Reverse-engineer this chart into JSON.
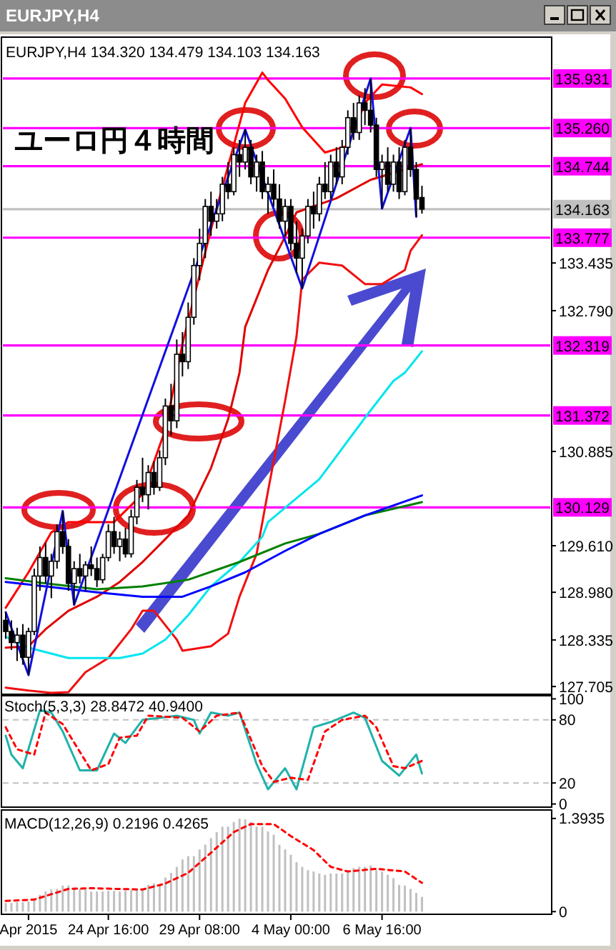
{
  "chart_data": [
    {
      "type": "candlestick",
      "title": "EURJPY,H4",
      "subtitle": "EURJPY,H4 134.320 134.479 134.103 134.163",
      "annotations": [
        "ユーロ円４時間"
      ],
      "categories": [
        null,
        null,
        null,
        null,
        null,
        null,
        null,
        null,
        null,
        null,
        null,
        null,
        null,
        null,
        null,
        null,
        null,
        null,
        null,
        null,
        null,
        null,
        null,
        null,
        null,
        null,
        null,
        null,
        null,
        null,
        null,
        null,
        null,
        null,
        null,
        null,
        null,
        null,
        null,
        null,
        null,
        null,
        null,
        null,
        null,
        null,
        null,
        null,
        null,
        null,
        null,
        null,
        null,
        null,
        null,
        null,
        null,
        null,
        null,
        null,
        null,
        null,
        null,
        null,
        null,
        null,
        null,
        null,
        null,
        null,
        null,
        null,
        null,
        null,
        null,
        null,
        null,
        null,
        null,
        null,
        null,
        null,
        null,
        null,
        null,
        null,
        null,
        null,
        null,
        null,
        null,
        null,
        null,
        null,
        null,
        null
      ],
      "ohlc": [
        [
          128.6,
          128.71,
          128.35,
          128.45
        ],
        [
          128.45,
          128.6,
          128.2,
          128.3
        ],
        [
          128.3,
          128.5,
          128.05,
          128.4
        ],
        [
          128.4,
          128.55,
          128.0,
          128.1
        ],
        [
          128.1,
          128.5,
          127.86,
          128.45
        ],
        [
          128.45,
          129.3,
          128.4,
          129.2
        ],
        [
          129.2,
          129.6,
          129.0,
          129.45
        ],
        [
          129.45,
          129.65,
          129.1,
          129.2
        ],
        [
          129.2,
          129.5,
          128.9,
          129.4
        ],
        [
          129.4,
          129.9,
          129.3,
          129.8
        ],
        [
          129.8,
          130.08,
          129.5,
          129.6
        ],
        [
          129.6,
          129.7,
          129.0,
          129.1
        ],
        [
          129.1,
          129.4,
          128.81,
          129.3
        ],
        [
          129.3,
          129.5,
          129.1,
          129.2
        ],
        [
          129.2,
          129.4,
          129.0,
          129.35
        ],
        [
          129.35,
          129.6,
          129.2,
          129.3
        ],
        [
          129.3,
          129.45,
          129.05,
          129.15
        ],
        [
          129.15,
          129.5,
          129.1,
          129.45
        ],
        [
          129.45,
          129.9,
          129.4,
          129.8
        ],
        [
          129.8,
          130.0,
          129.5,
          129.6
        ],
        [
          129.6,
          129.8,
          129.4,
          129.7
        ],
        [
          129.7,
          129.85,
          129.45,
          129.5
        ],
        [
          129.5,
          130.1,
          129.45,
          130.0
        ],
        [
          130.0,
          130.5,
          129.9,
          130.4
        ],
        [
          130.4,
          130.8,
          130.2,
          130.3
        ],
        [
          130.3,
          130.7,
          130.1,
          130.6
        ],
        [
          130.6,
          130.75,
          130.3,
          130.4
        ],
        [
          130.4,
          130.9,
          130.35,
          130.8
        ],
        [
          130.8,
          131.6,
          130.7,
          131.5
        ],
        [
          131.5,
          131.8,
          131.1,
          131.3
        ],
        [
          131.3,
          132.4,
          131.2,
          132.2
        ],
        [
          132.2,
          132.5,
          131.9,
          132.1
        ],
        [
          132.1,
          132.9,
          132.0,
          132.7
        ],
        [
          132.7,
          133.5,
          132.6,
          133.4
        ],
        [
          133.4,
          133.9,
          133.2,
          133.7
        ],
        [
          133.7,
          134.3,
          133.5,
          134.2
        ],
        [
          134.2,
          134.4,
          133.8,
          134.0
        ],
        [
          134.0,
          134.3,
          133.9,
          134.1
        ],
        [
          134.1,
          134.6,
          134.0,
          134.5
        ],
        [
          134.5,
          134.8,
          134.3,
          134.4
        ],
        [
          134.4,
          135.0,
          134.35,
          134.9
        ],
        [
          134.9,
          135.1,
          134.6,
          134.8
        ],
        [
          134.8,
          135.24,
          134.7,
          135.0
        ],
        [
          135.0,
          135.1,
          134.5,
          134.6
        ],
        [
          134.6,
          134.9,
          134.4,
          134.8
        ],
        [
          134.8,
          134.95,
          134.3,
          134.4
        ],
        [
          134.4,
          134.6,
          134.1,
          134.5
        ],
        [
          134.5,
          134.7,
          134.2,
          134.3
        ],
        [
          134.3,
          134.5,
          133.9,
          134.0
        ],
        [
          134.0,
          134.3,
          133.8,
          134.2
        ],
        [
          134.2,
          134.3,
          133.6,
          133.7
        ],
        [
          133.7,
          134.0,
          133.3,
          133.5
        ],
        [
          133.5,
          133.9,
          133.09,
          133.8
        ],
        [
          133.8,
          134.3,
          133.7,
          134.2
        ],
        [
          134.2,
          134.4,
          133.9,
          134.1
        ],
        [
          134.1,
          134.6,
          134.0,
          134.5
        ],
        [
          134.5,
          134.8,
          134.3,
          134.4
        ],
        [
          134.4,
          134.9,
          134.3,
          134.8
        ],
        [
          134.8,
          135.0,
          134.5,
          134.6
        ],
        [
          134.6,
          135.1,
          134.5,
          135.0
        ],
        [
          135.0,
          135.5,
          134.9,
          135.4
        ],
        [
          135.4,
          135.6,
          135.1,
          135.2
        ],
        [
          135.2,
          135.7,
          135.1,
          135.6
        ],
        [
          135.6,
          135.8,
          135.3,
          135.5
        ],
        [
          135.5,
          135.93,
          135.2,
          135.3
        ],
        [
          135.3,
          135.4,
          134.6,
          134.7
        ],
        [
          134.7,
          134.9,
          134.17,
          134.8
        ],
        [
          134.8,
          135.0,
          134.4,
          134.5
        ],
        [
          134.5,
          134.9,
          134.4,
          134.8
        ],
        [
          134.8,
          135.0,
          134.3,
          134.4
        ],
        [
          134.4,
          135.1,
          134.35,
          135.0
        ],
        [
          135.0,
          135.26,
          134.6,
          134.7
        ],
        [
          134.7,
          134.8,
          134.06,
          134.3
        ],
        [
          134.32,
          134.479,
          134.103,
          134.163
        ],
        null,
        null,
        null,
        null,
        null,
        null,
        null,
        null,
        null,
        null,
        null,
        null,
        null,
        null,
        null,
        null,
        null,
        null,
        null,
        null,
        null,
        null
      ],
      "series": [
        {
          "type": "line",
          "color": "#ff0000",
          "values": [
            128.77,
            null,
            null,
            null,
            129.25,
            null,
            null,
            null,
            129.79,
            null,
            null,
            129.93,
            null,
            null,
            null,
            null,
            null,
            null,
            null,
            129.93,
            null,
            null,
            null,
            null,
            130.31,
            null,
            null,
            null,
            131.18,
            null,
            null,
            132.34,
            null,
            null,
            null,
            null,
            133.89,
            null,
            null,
            null,
            null,
            null,
            135.6,
            null,
            null,
            136.01,
            135.91,
            null,
            null,
            135.66,
            null,
            null,
            135.27,
            null,
            null,
            null,
            134.93,
            null,
            null,
            null,
            135.02,
            null,
            null,
            135.6,
            null,
            null,
            135.85,
            null,
            null,
            null,
            null,
            135.81,
            null,
            135.72,
            null,
            null,
            null,
            null,
            null,
            null,
            null,
            null,
            null,
            null,
            null,
            null,
            null,
            null,
            null,
            null,
            null,
            null,
            null,
            null,
            null,
            null
          ]
        },
        {
          "type": "line",
          "color": "#f01010",
          "values": [
            127.69,
            null,
            null,
            null,
            127.65,
            null,
            null,
            null,
            127.62,
            null,
            null,
            127.63,
            null,
            null,
            127.9,
            null,
            null,
            null,
            128.09,
            null,
            null,
            null,
            128.48,
            null,
            128.73,
            null,
            128.73,
            null,
            null,
            null,
            128.34,
            128.19,
            null,
            null,
            null,
            null,
            128.25,
            null,
            null,
            128.42,
            null,
            128.92,
            null,
            null,
            129.5,
            null,
            130.35,
            null,
            null,
            131.57,
            null,
            132.44,
            133.21,
            null,
            null,
            133.44,
            null,
            null,
            null,
            133.4,
            null,
            null,
            null,
            133.15,
            null,
            null,
            133.15,
            null,
            null,
            null,
            133.34,
            133.6,
            null,
            133.81,
            null,
            null,
            null,
            null,
            null,
            null,
            null,
            null,
            null,
            null,
            null,
            null,
            null,
            null,
            null,
            null,
            null,
            null,
            null,
            null,
            null,
            null
          ]
        },
        {
          "type": "line",
          "color": "#e00000",
          "values": [
            128.23,
            null,
            null,
            null,
            128.25,
            null,
            null,
            128.48,
            null,
            null,
            null,
            128.73,
            null,
            null,
            null,
            null,
            128.92,
            null,
            null,
            null,
            129.12,
            null,
            null,
            null,
            129.39,
            null,
            null,
            null,
            129.7,
            null,
            null,
            null,
            130.02,
            null,
            null,
            null,
            130.66,
            null,
            null,
            131.32,
            null,
            131.95,
            132.57,
            null,
            null,
            null,
            133.34,
            null,
            null,
            133.79,
            null,
            134.12,
            null,
            null,
            null,
            null,
            null,
            null,
            134.31,
            null,
            null,
            null,
            null,
            null,
            134.56,
            null,
            null,
            null,
            null,
            null,
            134.7,
            null,
            null,
            134.77,
            null,
            null,
            null,
            null,
            null,
            null,
            null,
            null,
            null,
            null,
            null,
            null,
            null,
            null,
            null,
            null,
            null,
            null,
            null,
            null,
            null,
            null
          ]
        },
        {
          "type": "line",
          "color": "#00e5ee",
          "values": [
            128.38,
            null,
            null,
            null,
            128.23,
            null,
            null,
            null,
            null,
            null,
            null,
            128.09,
            null,
            null,
            null,
            null,
            null,
            null,
            null,
            null,
            128.09,
            null,
            null,
            null,
            128.15,
            null,
            null,
            null,
            128.34,
            null,
            null,
            null,
            128.67,
            null,
            null,
            null,
            129.06,
            null,
            null,
            null,
            null,
            129.39,
            null,
            null,
            null,
            129.73,
            129.93,
            null,
            null,
            null,
            null,
            null,
            null,
            null,
            null,
            130.51,
            null,
            null,
            null,
            null,
            null,
            null,
            null,
            131.34,
            null,
            null,
            null,
            null,
            131.84,
            null,
            131.95,
            null,
            null,
            132.24,
            null,
            null,
            null,
            null,
            null,
            null,
            null,
            null,
            null,
            null,
            null,
            null,
            null,
            null,
            null,
            null,
            null,
            null,
            null,
            null,
            null,
            null
          ]
        },
        {
          "type": "line",
          "color": "#008000",
          "values": [
            129.17,
            null,
            null,
            null,
            null,
            null,
            null,
            129.1,
            null,
            null,
            null,
            null,
            null,
            null,
            null,
            null,
            129.02,
            null,
            null,
            null,
            null,
            null,
            null,
            null,
            129.06,
            null,
            null,
            null,
            null,
            null,
            null,
            null,
            129.15,
            null,
            null,
            null,
            null,
            null,
            null,
            null,
            null,
            129.39,
            null,
            null,
            null,
            null,
            null,
            null,
            null,
            129.64,
            null,
            null,
            null,
            null,
            null,
            129.77,
            null,
            null,
            null,
            null,
            null,
            null,
            null,
            130.02,
            null,
            null,
            null,
            null,
            null,
            null,
            null,
            null,
            null,
            130.2,
            null,
            null,
            null,
            null,
            null,
            null,
            null,
            null,
            null,
            null,
            null,
            null,
            null,
            null,
            null,
            null,
            null,
            null,
            null,
            null,
            null,
            null
          ]
        },
        {
          "type": "line",
          "color": "#0000ff",
          "values": [
            129.12,
            null,
            null,
            null,
            null,
            null,
            null,
            129.06,
            null,
            null,
            null,
            null,
            null,
            null,
            null,
            null,
            128.98,
            null,
            null,
            null,
            null,
            null,
            null,
            null,
            128.92,
            null,
            null,
            null,
            null,
            null,
            null,
            128.92,
            null,
            null,
            null,
            null,
            129.06,
            null,
            null,
            null,
            null,
            null,
            129.25,
            null,
            null,
            null,
            null,
            null,
            null,
            129.54,
            null,
            null,
            null,
            null,
            null,
            129.77,
            null,
            null,
            null,
            null,
            null,
            null,
            null,
            130.02,
            null,
            null,
            null,
            null,
            null,
            null,
            null,
            null,
            null,
            130.29,
            null,
            null,
            null,
            null,
            null,
            null,
            null,
            null,
            null,
            null,
            null,
            null,
            null,
            null,
            null,
            null,
            null,
            null,
            null,
            null,
            null,
            null
          ]
        },
        {
          "type": "line",
          "color": "#1010e0",
          "values": [
            128.71,
            null,
            null,
            null,
            127.86,
            null,
            null,
            null,
            null,
            null,
            130.08,
            null,
            128.81,
            null,
            null,
            null,
            null,
            null,
            null,
            null,
            null,
            null,
            null,
            null,
            null,
            null,
            null,
            null,
            null,
            null,
            null,
            null,
            null,
            null,
            null,
            null,
            null,
            null,
            null,
            null,
            null,
            null,
            135.24,
            null,
            null,
            null,
            null,
            null,
            null,
            null,
            null,
            null,
            133.09,
            null,
            null,
            null,
            null,
            null,
            null,
            null,
            null,
            null,
            null,
            null,
            135.93,
            null,
            134.17,
            null,
            null,
            null,
            null,
            135.26,
            134.06,
            null,
            null,
            null,
            null,
            null,
            null,
            null,
            null,
            null,
            null,
            null,
            null,
            null,
            null,
            null,
            null,
            null,
            null,
            null,
            null,
            null,
            null,
            null
          ]
        }
      ],
      "ref_lines": [
        {
          "axis": "y",
          "value": 135.931,
          "label": "135.931",
          "color": "#ff00ff"
        },
        {
          "axis": "y",
          "value": 135.26,
          "label": "135.260",
          "color": "#ff00ff"
        },
        {
          "axis": "y",
          "value": 134.744,
          "label": "134.744",
          "color": "#ff00ff"
        },
        {
          "axis": "y",
          "value": 134.163,
          "label": "134.163",
          "color": "#c0c0c0"
        },
        {
          "axis": "y",
          "value": 133.777,
          "label": "133.777",
          "color": "#ff00ff"
        },
        {
          "axis": "y",
          "value": 132.319,
          "label": "132.319",
          "color": "#ff00ff"
        },
        {
          "axis": "y",
          "value": 131.372,
          "label": "131.372",
          "color": "#ff00ff"
        },
        {
          "axis": "y",
          "value": 130.129,
          "label": "130.129",
          "color": "#ff00ff"
        }
      ],
      "ylim": [
        127.6,
        136.49
      ],
      "yticks": [
        {
          "value": 133.435,
          "label": "133.435"
        },
        {
          "value": 132.79,
          "label": "132.790"
        },
        {
          "value": 130.885,
          "label": "130.885"
        },
        {
          "value": 129.61,
          "label": "129.610"
        },
        {
          "value": 128.98,
          "label": "128.980"
        },
        {
          "value": 128.335,
          "label": "128.335"
        },
        {
          "value": 127.705,
          "label": "127.705"
        }
      ],
      "tick_labels": "y"
    },
    {
      "type": "line",
      "title": "Stoch(5,3,3) 28.8472 40.9400",
      "categories": [
        null,
        null,
        null,
        null,
        null,
        null,
        null,
        null,
        null,
        null,
        null,
        null,
        null,
        null,
        null,
        null,
        null,
        null,
        null,
        null,
        null,
        null,
        null,
        null,
        null,
        null,
        null,
        null,
        null,
        null,
        null,
        null,
        null,
        null,
        null,
        null,
        null,
        null,
        null,
        null,
        null,
        null,
        null,
        null,
        null,
        null,
        null,
        null,
        null,
        null,
        null,
        null,
        null,
        null,
        null,
        null,
        null,
        null,
        null,
        null,
        null,
        null,
        null,
        null,
        null,
        null,
        null,
        null,
        null,
        null,
        null,
        null,
        null,
        null,
        null,
        null,
        null,
        null,
        null,
        null,
        null,
        null,
        null,
        null,
        null,
        null,
        null,
        null,
        null,
        null,
        null,
        null,
        null,
        null,
        null,
        null
      ],
      "series": [
        {
          "color": "#20b2aa",
          "values": [
            65,
            47,
            null,
            34,
            null,
            null,
            89,
            null,
            87,
            null,
            69,
            null,
            null,
            32,
            null,
            null,
            32,
            null,
            null,
            67,
            null,
            58,
            null,
            null,
            80,
            null,
            null,
            82,
            null,
            null,
            84,
            null,
            null,
            80,
            67,
            null,
            87,
            null,
            null,
            84,
            null,
            87,
            null,
            null,
            38,
            null,
            14,
            null,
            null,
            34,
            null,
            14,
            null,
            null,
            73,
            null,
            null,
            78,
            null,
            null,
            null,
            87,
            null,
            82,
            null,
            null,
            41,
            null,
            null,
            27,
            null,
            null,
            47,
            29,
            null,
            null,
            null,
            null,
            null,
            null,
            null,
            null,
            null,
            null,
            null,
            null,
            null,
            null,
            null,
            null,
            null,
            null,
            null,
            null,
            null,
            null
          ]
        },
        {
          "color": "#ff0000",
          "line_style": "dashed",
          "values": [
            73,
            null,
            52,
            null,
            null,
            47,
            null,
            87,
            null,
            null,
            76,
            null,
            null,
            null,
            null,
            32,
            null,
            null,
            38,
            null,
            63,
            null,
            null,
            65,
            null,
            84,
            null,
            null,
            null,
            null,
            null,
            82,
            null,
            null,
            69,
            null,
            null,
            84,
            null,
            null,
            null,
            87,
            null,
            null,
            null,
            36,
            null,
            21,
            null,
            null,
            25,
            null,
            null,
            23,
            null,
            null,
            69,
            null,
            null,
            80,
            null,
            null,
            null,
            84,
            null,
            73,
            null,
            null,
            36,
            null,
            34,
            null,
            null,
            41,
            null,
            null,
            null,
            null,
            null,
            null,
            null,
            null,
            null,
            null,
            null,
            null,
            null,
            null,
            null,
            null,
            null,
            null,
            null,
            null,
            null,
            null
          ]
        }
      ],
      "ref_lines": [
        {
          "axis": "y",
          "value": 80,
          "color": "#c0c0c0",
          "line_style": "dashed"
        },
        {
          "axis": "y",
          "value": 20,
          "color": "#c0c0c0",
          "line_style": "dashed"
        }
      ],
      "ylim": [
        -3,
        103
      ],
      "yticks": [
        100,
        80,
        20,
        0
      ],
      "tick_labels": "y"
    },
    {
      "type": "bar",
      "title": "MACD(12,26,9) 0.2196 0.4265",
      "categories": [
        null,
        null,
        null,
        null,
        "Apr 2015",
        null,
        null,
        null,
        null,
        null,
        null,
        null,
        null,
        null,
        null,
        null,
        null,
        null,
        "24 Apr 16:00",
        null,
        null,
        null,
        null,
        null,
        null,
        null,
        null,
        null,
        null,
        null,
        null,
        null,
        null,
        null,
        "29 Apr 08:00",
        null,
        null,
        null,
        null,
        null,
        null,
        null,
        null,
        null,
        null,
        null,
        null,
        null,
        null,
        null,
        "4 May 00:00",
        null,
        null,
        null,
        null,
        null,
        null,
        null,
        null,
        null,
        null,
        null,
        null,
        null,
        null,
        null,
        "6 May 16:00",
        null,
        null,
        null,
        null,
        null,
        null,
        null,
        null,
        null,
        null,
        null,
        null,
        null,
        null,
        null,
        null,
        null,
        null,
        null,
        null,
        null,
        null,
        null,
        null,
        null,
        null,
        null,
        null,
        null
      ],
      "series": [
        {
          "type": "bar",
          "color": "#c0c0c0",
          "values": [
            0.13,
            0.13,
            0.14,
            0.14,
            0.15,
            0.18,
            0.25,
            0.3,
            0.33,
            0.34,
            0.39,
            0.39,
            0.35,
            0.34,
            0.33,
            0.3,
            0.3,
            0.3,
            0.31,
            0.31,
            0.3,
            0.31,
            0.32,
            0.34,
            0.35,
            0.4,
            0.42,
            0.41,
            0.51,
            0.58,
            0.67,
            0.78,
            0.83,
            0.83,
            0.93,
            1.0,
            1.1,
            1.19,
            1.27,
            1.27,
            1.34,
            1.39,
            1.38,
            1.34,
            1.27,
            1.27,
            1.2,
            1.15,
            1.0,
            0.93,
            0.85,
            0.74,
            0.67,
            0.62,
            0.6,
            0.57,
            0.55,
            0.57,
            0.57,
            0.57,
            0.6,
            0.65,
            0.67,
            0.67,
            0.69,
            0.62,
            0.6,
            0.55,
            0.5,
            0.4,
            0.39,
            0.34,
            0.28,
            0.22,
            null,
            null,
            null,
            null,
            null,
            null,
            null,
            null,
            null,
            null,
            null,
            null,
            null,
            null,
            null,
            null,
            null,
            null,
            null,
            null,
            null,
            null
          ]
        },
        {
          "type": "line",
          "color": "#ff0000",
          "line_style": "dashed",
          "values": [
            0.16,
            null,
            null,
            null,
            null,
            0.18,
            null,
            null,
            null,
            null,
            null,
            0.34,
            null,
            null,
            null,
            0.35,
            null,
            null,
            null,
            null,
            null,
            null,
            null,
            null,
            0.33,
            null,
            null,
            null,
            0.42,
            null,
            null,
            null,
            0.58,
            null,
            null,
            null,
            0.88,
            null,
            null,
            null,
            1.19,
            null,
            null,
            1.31,
            null,
            null,
            null,
            1.31,
            null,
            null,
            1.13,
            null,
            null,
            null,
            0.92,
            null,
            null,
            0.67,
            null,
            null,
            0.6,
            null,
            null,
            null,
            null,
            0.64,
            null,
            null,
            null,
            null,
            0.6,
            null,
            null,
            0.43,
            null,
            null,
            null,
            null,
            null,
            null,
            null,
            null,
            null,
            null,
            null,
            null,
            null,
            null,
            null,
            null,
            null,
            null,
            null,
            null,
            null,
            null
          ]
        }
      ],
      "ylim": [
        -0.04,
        1.52
      ],
      "yticks": [
        {
          "value": 0,
          "label": "0"
        },
        {
          "value": 1.3935,
          "label": "1.3935"
        }
      ]
    }
  ]
}
